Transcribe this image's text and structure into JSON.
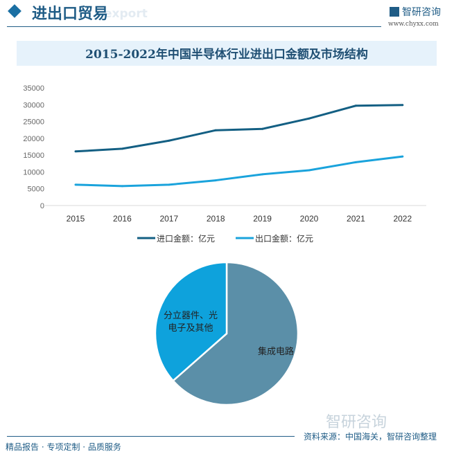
{
  "header": {
    "title": "进出口贸易",
    "ghost_text": "export",
    "brand": "智研咨询",
    "url": "www.chyxx.com"
  },
  "chart_title": "2015-2022年中国半导体行业进出口金额及市场结构",
  "chart_data": [
    {
      "type": "line",
      "categories": [
        "2015",
        "2016",
        "2017",
        "2018",
        "2019",
        "2020",
        "2021",
        "2022"
      ],
      "yticks": [
        "0",
        "5000",
        "10000",
        "15000",
        "20000",
        "25000",
        "30000",
        "35000"
      ],
      "ylim": [
        0,
        35000
      ],
      "grid": false,
      "legend_position": "bottom",
      "series": [
        {
          "name": "进口金额：亿元",
          "color": "#135f83",
          "values": [
            16100,
            16900,
            19300,
            22400,
            22800,
            25900,
            29700,
            29900
          ]
        },
        {
          "name": "出口金额：亿元",
          "color": "#1aa3dc",
          "values": [
            6200,
            5800,
            6200,
            7500,
            9300,
            10500,
            12900,
            14600
          ]
        }
      ]
    },
    {
      "type": "pie",
      "slices": [
        {
          "label": "集成电路",
          "value": 63.5,
          "color": "#5b8fa8"
        },
        {
          "label": "分立器件、光电子及其他",
          "label_lines": [
            "分立器件、光",
            "电子及其他"
          ],
          "value": 36.5,
          "color": "#0ea2dc"
        }
      ]
    }
  ],
  "footer": {
    "left": "精品报告 · 专项定制 · 品质服务",
    "source": "资料来源：中国海关，智研咨询整理",
    "brand": "智研咨询"
  }
}
